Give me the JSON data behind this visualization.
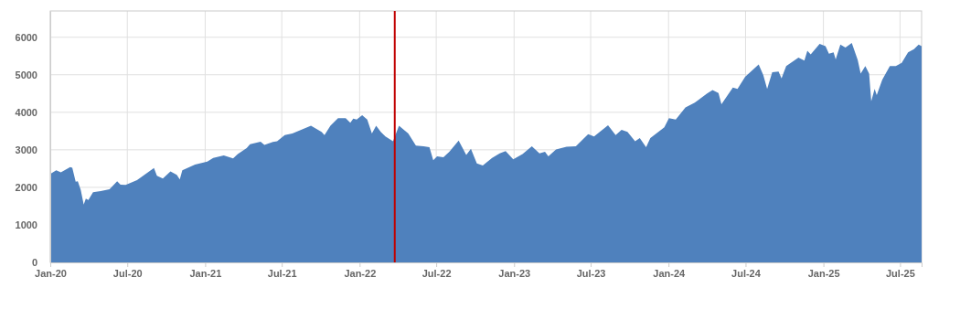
{
  "chart_data": {
    "type": "area",
    "xlim": [
      "2020-01-01",
      "2025-08-21"
    ],
    "ylim": [
      0,
      6700
    ],
    "yticks": [
      0,
      1000,
      2000,
      3000,
      4000,
      5000,
      6000
    ],
    "xticks": [
      {
        "value": "2020-01-01",
        "label": "Jan-20"
      },
      {
        "value": "2020-07-01",
        "label": "Jul-20"
      },
      {
        "value": "2021-01-01",
        "label": "Jan-21"
      },
      {
        "value": "2021-07-01",
        "label": "Jul-21"
      },
      {
        "value": "2022-01-01",
        "label": "Jan-22"
      },
      {
        "value": "2022-07-01",
        "label": "Jul-22"
      },
      {
        "value": "2023-01-01",
        "label": "Jan-23"
      },
      {
        "value": "2023-07-01",
        "label": "Jul-23"
      },
      {
        "value": "2024-01-01",
        "label": "Jan-24"
      },
      {
        "value": "2024-07-01",
        "label": "Jul-24"
      },
      {
        "value": "2025-01-01",
        "label": "Jan-25"
      },
      {
        "value": "2025-07-01",
        "label": "Jul-25"
      }
    ],
    "grid": true,
    "ref_lines": [
      {
        "axis": "x",
        "value": "2022-03-25",
        "color": "#c00000"
      }
    ],
    "x": [
      "2020-01-01",
      "2020-01-15",
      "2020-01-26",
      "2020-02-17",
      "2020-02-22",
      "2020-03-01",
      "2020-03-06",
      "2020-03-13",
      "2020-03-20",
      "2020-03-25",
      "2020-03-31",
      "2020-04-11",
      "2020-04-29",
      "2020-05-20",
      "2020-06-07",
      "2020-06-15",
      "2020-06-27",
      "2020-07-24",
      "2020-09-02",
      "2020-09-09",
      "2020-09-23",
      "2020-10-11",
      "2020-10-26",
      "2020-11-02",
      "2020-11-08",
      "2020-12-08",
      "2021-01-06",
      "2021-01-20",
      "2021-02-14",
      "2021-03-08",
      "2021-03-19",
      "2021-04-09",
      "2021-04-17",
      "2021-05-12",
      "2021-05-21",
      "2021-06-10",
      "2021-06-20",
      "2021-07-08",
      "2021-07-26",
      "2021-09-08",
      "2021-10-03",
      "2021-10-10",
      "2021-10-24",
      "2021-11-11",
      "2021-11-29",
      "2021-12-10",
      "2021-12-17",
      "2021-12-25",
      "2022-01-07",
      "2022-01-19",
      "2022-01-30",
      "2022-02-09",
      "2022-02-20",
      "2022-03-03",
      "2022-03-21",
      "2022-04-04",
      "2022-04-26",
      "2022-05-14",
      "2022-06-01",
      "2022-06-15",
      "2022-06-24",
      "2022-07-03",
      "2022-07-18",
      "2022-08-01",
      "2022-08-23",
      "2022-09-10",
      "2022-09-21",
      "2022-10-05",
      "2022-10-19",
      "2022-11-10",
      "2022-11-28",
      "2022-12-12",
      "2022-12-30",
      "2023-01-21",
      "2023-02-12",
      "2023-03-02",
      "2023-03-15",
      "2023-03-23",
      "2023-04-10",
      "2023-05-05",
      "2023-05-27",
      "2023-06-25",
      "2023-07-09",
      "2023-08-11",
      "2023-08-29",
      "2023-09-12",
      "2023-09-26",
      "2023-10-14",
      "2023-10-25",
      "2023-11-09",
      "2023-11-19",
      "2023-12-22",
      "2024-01-02",
      "2024-01-18",
      "2024-02-10",
      "2024-03-03",
      "2024-04-01",
      "2024-04-14",
      "2024-04-28",
      "2024-05-05",
      "2024-06-01",
      "2024-06-12",
      "2024-06-30",
      "2024-08-01",
      "2024-08-12",
      "2024-08-21",
      "2024-09-02",
      "2024-09-17",
      "2024-09-24",
      "2024-10-05",
      "2024-11-03",
      "2024-11-17",
      "2024-11-24",
      "2024-12-02",
      "2024-12-23",
      "2025-01-06",
      "2025-01-14",
      "2025-01-25",
      "2025-01-30",
      "2025-02-10",
      "2025-02-22",
      "2025-03-09",
      "2025-03-23",
      "2025-03-30",
      "2025-04-10",
      "2025-04-19",
      "2025-04-24",
      "2025-05-02",
      "2025-05-07",
      "2025-05-20",
      "2025-06-07",
      "2025-06-21",
      "2025-07-05",
      "2025-07-20",
      "2025-08-03",
      "2025-08-14",
      "2025-08-21"
    ],
    "series": [
      {
        "color": "#4f81bd",
        "values": [
          2360,
          2456,
          2400,
          2540,
          2520,
          2150,
          2160,
          1930,
          1540,
          1700,
          1665,
          1870,
          1900,
          1950,
          2160,
          2070,
          2065,
          2195,
          2515,
          2310,
          2235,
          2425,
          2335,
          2210,
          2455,
          2605,
          2685,
          2785,
          2850,
          2770,
          2885,
          3045,
          3150,
          3215,
          3130,
          3210,
          3230,
          3395,
          3435,
          3640,
          3475,
          3395,
          3640,
          3845,
          3845,
          3720,
          3830,
          3805,
          3925,
          3805,
          3435,
          3640,
          3475,
          3355,
          3230,
          3640,
          3435,
          3110,
          3095,
          3070,
          2720,
          2825,
          2800,
          2945,
          3245,
          2865,
          3030,
          2640,
          2580,
          2785,
          2905,
          2965,
          2745,
          2885,
          3095,
          2905,
          2945,
          2825,
          3010,
          3085,
          3095,
          3420,
          3355,
          3655,
          3395,
          3535,
          3475,
          3230,
          3315,
          3070,
          3315,
          3600,
          3845,
          3805,
          4130,
          4255,
          4500,
          4595,
          4515,
          4215,
          4660,
          4620,
          4945,
          5275,
          4990,
          4620,
          5070,
          5085,
          4905,
          5235,
          5455,
          5380,
          5640,
          5545,
          5820,
          5765,
          5560,
          5600,
          5410,
          5805,
          5725,
          5845,
          5395,
          5030,
          5235,
          5030,
          4295,
          4620,
          4460,
          4865,
          5235,
          5235,
          5315,
          5600,
          5680,
          5805,
          5765
        ]
      }
    ]
  }
}
